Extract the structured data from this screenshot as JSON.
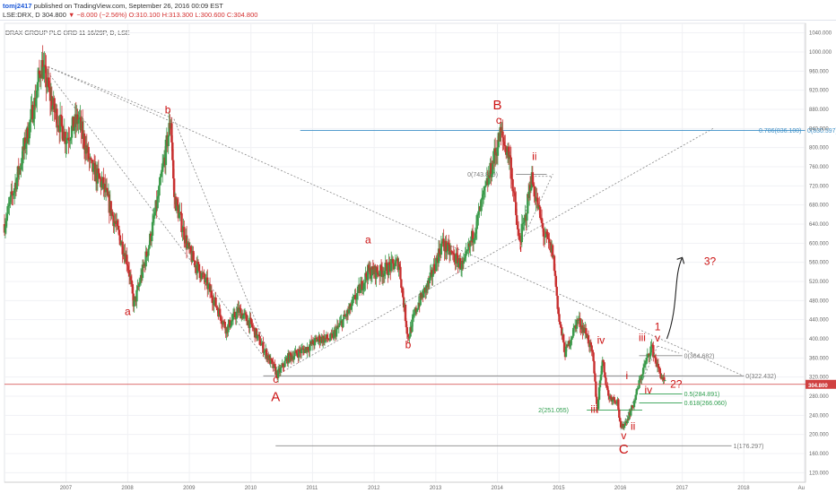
{
  "header": {
    "user": "tomj2417",
    "published": "published on TradingView.com, September 26, 2016 00:09 EST",
    "ticker": "LSE:DRX, D",
    "price": "304.800",
    "change": "−8.000 (−2.56%)",
    "open": "O:310.100",
    "high": "H:313.300",
    "low": "L:300.600",
    "close": "C:304.800"
  },
  "symbol_label": "DRAX GROUP PLC ORD 11 16/29P, D, LSE",
  "colors": {
    "up": "#3a9a4a",
    "down": "#c83030",
    "wave": "#cc1111",
    "fib_blue": "#3d8fc7",
    "fib_green": "#2e9e4e",
    "price_line": "#d04040"
  },
  "chart_data": {
    "type": "candlestick",
    "x_axis": {
      "range": [
        2006.0,
        2019.0
      ],
      "ticks": [
        "2007",
        "2008",
        "2009",
        "2010",
        "2011",
        "2012",
        "2013",
        "2014",
        "2015",
        "2016",
        "2017",
        "2018",
        "Au"
      ]
    },
    "y_axis": {
      "range": [
        100,
        1060
      ],
      "ticks": [
        "1040.000",
        "1000.000",
        "960.000",
        "920.000",
        "880.000",
        "840.000",
        "800.000",
        "760.000",
        "720.000",
        "680.000",
        "640.000",
        "600.000",
        "560.000",
        "520.000",
        "480.000",
        "440.000",
        "400.000",
        "360.000",
        "320.000",
        "280.000",
        "240.000",
        "200.000",
        "160.000",
        "120.000"
      ]
    },
    "last_price": "304.800",
    "price_path": [
      [
        2006.0,
        640
      ],
      [
        2006.25,
        760
      ],
      [
        2006.5,
        900
      ],
      [
        2006.6,
        975
      ],
      [
        2006.8,
        880
      ],
      [
        2007.0,
        820
      ],
      [
        2007.2,
        860
      ],
      [
        2007.4,
        760
      ],
      [
        2007.6,
        720
      ],
      [
        2007.8,
        640
      ],
      [
        2008.0,
        560
      ],
      [
        2008.1,
        470
      ],
      [
        2008.2,
        520
      ],
      [
        2008.35,
        600
      ],
      [
        2008.5,
        700
      ],
      [
        2008.7,
        860
      ],
      [
        2008.75,
        700
      ],
      [
        2009.0,
        580
      ],
      [
        2009.3,
        510
      ],
      [
        2009.6,
        420
      ],
      [
        2009.8,
        460
      ],
      [
        2010.0,
        430
      ],
      [
        2010.2,
        380
      ],
      [
        2010.43,
        325
      ],
      [
        2010.6,
        360
      ],
      [
        2010.9,
        380
      ],
      [
        2011.1,
        400
      ],
      [
        2011.3,
        400
      ],
      [
        2011.6,
        460
      ],
      [
        2011.9,
        540
      ],
      [
        2012.1,
        540
      ],
      [
        2012.4,
        560
      ],
      [
        2012.55,
        400
      ],
      [
        2012.7,
        470
      ],
      [
        2012.9,
        520
      ],
      [
        2013.1,
        600
      ],
      [
        2013.3,
        570
      ],
      [
        2013.45,
        550
      ],
      [
        2013.7,
        660
      ],
      [
        2013.95,
        780
      ],
      [
        2014.05,
        830
      ],
      [
        2014.2,
        780
      ],
      [
        2014.35,
        600
      ],
      [
        2014.45,
        650
      ],
      [
        2014.55,
        740
      ],
      [
        2014.75,
        620
      ],
      [
        2014.9,
        580
      ],
      [
        2015.0,
        440
      ],
      [
        2015.1,
        370
      ],
      [
        2015.3,
        440
      ],
      [
        2015.45,
        410
      ],
      [
        2015.55,
        360
      ],
      [
        2015.62,
        250
      ],
      [
        2015.7,
        360
      ],
      [
        2015.8,
        280
      ],
      [
        2015.95,
        270
      ],
      [
        2016.0,
        210
      ],
      [
        2016.1,
        230
      ],
      [
        2016.2,
        260
      ],
      [
        2016.35,
        330
      ],
      [
        2016.5,
        385
      ],
      [
        2016.6,
        340
      ],
      [
        2016.72,
        304.8
      ]
    ],
    "wave_labels": [
      {
        "text": "a",
        "x": 2008.0,
        "y": 450
      },
      {
        "text": "b",
        "x": 2008.65,
        "y": 872
      },
      {
        "text": "c",
        "x": 2010.4,
        "y": 308
      },
      {
        "text": "A",
        "x": 2010.4,
        "y": 270
      },
      {
        "text": "a",
        "x": 2011.9,
        "y": 600
      },
      {
        "text": "b",
        "x": 2012.55,
        "y": 380
      },
      {
        "text": "B",
        "x": 2014.0,
        "y": 880
      },
      {
        "text": "c",
        "x": 2014.02,
        "y": 850
      },
      {
        "text": "ii",
        "x": 2014.6,
        "y": 774
      },
      {
        "text": "i",
        "x": 2014.38,
        "y": 582
      },
      {
        "text": "iv",
        "x": 2015.68,
        "y": 390
      },
      {
        "text": "iii",
        "x": 2015.57,
        "y": 245
      },
      {
        "text": "v",
        "x": 2016.05,
        "y": 190
      },
      {
        "text": "C",
        "x": 2016.05,
        "y": 160
      },
      {
        "text": "i",
        "x": 2016.1,
        "y": 316
      },
      {
        "text": "ii",
        "x": 2016.2,
        "y": 210
      },
      {
        "text": "iii",
        "x": 2016.35,
        "y": 395
      },
      {
        "text": "iv",
        "x": 2016.45,
        "y": 286
      },
      {
        "text": "1",
        "x": 2016.6,
        "y": 418
      },
      {
        "text": "v",
        "x": 2016.6,
        "y": 394
      },
      {
        "text": "2?",
        "x": 2016.9,
        "y": 298
      },
      {
        "text": "3?",
        "x": 2017.45,
        "y": 555
      }
    ],
    "fib_lines": [
      {
        "label": "0(830.597)",
        "extra": "0.786(836.100)",
        "y": 836,
        "x0": 2010.8,
        "x1": 2019.0,
        "color": "#3d8fc7"
      },
      {
        "label": "0(743.859)",
        "y": 743.859,
        "x0": 2014.3,
        "x1": 2014.8,
        "color": "#888888"
      },
      {
        "label": "0(364.682)",
        "y": 364.682,
        "x0": 2016.3,
        "x1": 2017.0,
        "color": "#888888"
      },
      {
        "label": "0(322.432)",
        "y": 322.432,
        "x0": 2010.2,
        "x1": 2018.0,
        "color": "#888888"
      },
      {
        "label": "0.5(284.891)",
        "y": 284.891,
        "x0": 2016.3,
        "x1": 2017.0,
        "color": "#2e9e4e"
      },
      {
        "label": "0.618(266.060)",
        "y": 266.06,
        "x0": 2016.3,
        "x1": 2017.0,
        "color": "#2e9e4e"
      },
      {
        "label": "2(251.055)",
        "y": 251.055,
        "x0": 2015.45,
        "x1": 2016.35,
        "color": "#2e9e4e"
      },
      {
        "label": "1(176.297)",
        "y": 176.297,
        "x0": 2010.4,
        "x1": 2017.8,
        "color": "#888888"
      }
    ]
  }
}
